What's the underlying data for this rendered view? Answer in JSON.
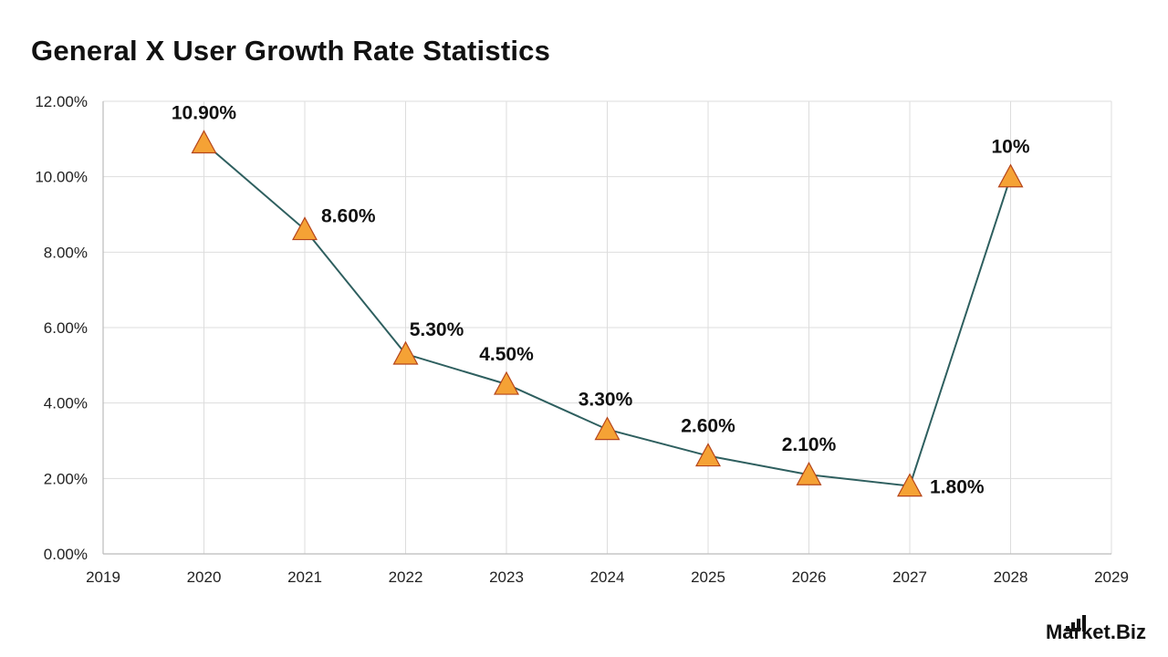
{
  "chart_data": {
    "type": "line",
    "title": "General X User Growth Rate Statistics",
    "xlabel": "",
    "ylabel": "",
    "x": [
      2020,
      2021,
      2022,
      2023,
      2024,
      2025,
      2026,
      2027,
      2028
    ],
    "values": [
      10.9,
      8.6,
      5.3,
      4.5,
      3.3,
      2.6,
      2.1,
      1.8,
      10
    ],
    "data_labels": [
      "10.90%",
      "8.60%",
      "5.30%",
      "4.50%",
      "3.30%",
      "2.60%",
      "2.10%",
      "1.80%",
      "10%"
    ],
    "xlim": [
      2019,
      2029
    ],
    "ylim": [
      0,
      12
    ],
    "x_ticks": [
      "2019",
      "2020",
      "2021",
      "2022",
      "2023",
      "2024",
      "2025",
      "2026",
      "2027",
      "2028",
      "2029"
    ],
    "y_ticks": [
      "0.00%",
      "2.00%",
      "4.00%",
      "6.00%",
      "8.00%",
      "10.00%",
      "12.00%"
    ],
    "grid": true,
    "legend": "none",
    "colors": {
      "line": "#2e5f5f",
      "marker_fill": "#f5a235",
      "marker_stroke": "#b5451b",
      "grid": "#dddddd",
      "axis": "#bbbbbb"
    }
  },
  "brand": {
    "name": "Market.Biz"
  }
}
